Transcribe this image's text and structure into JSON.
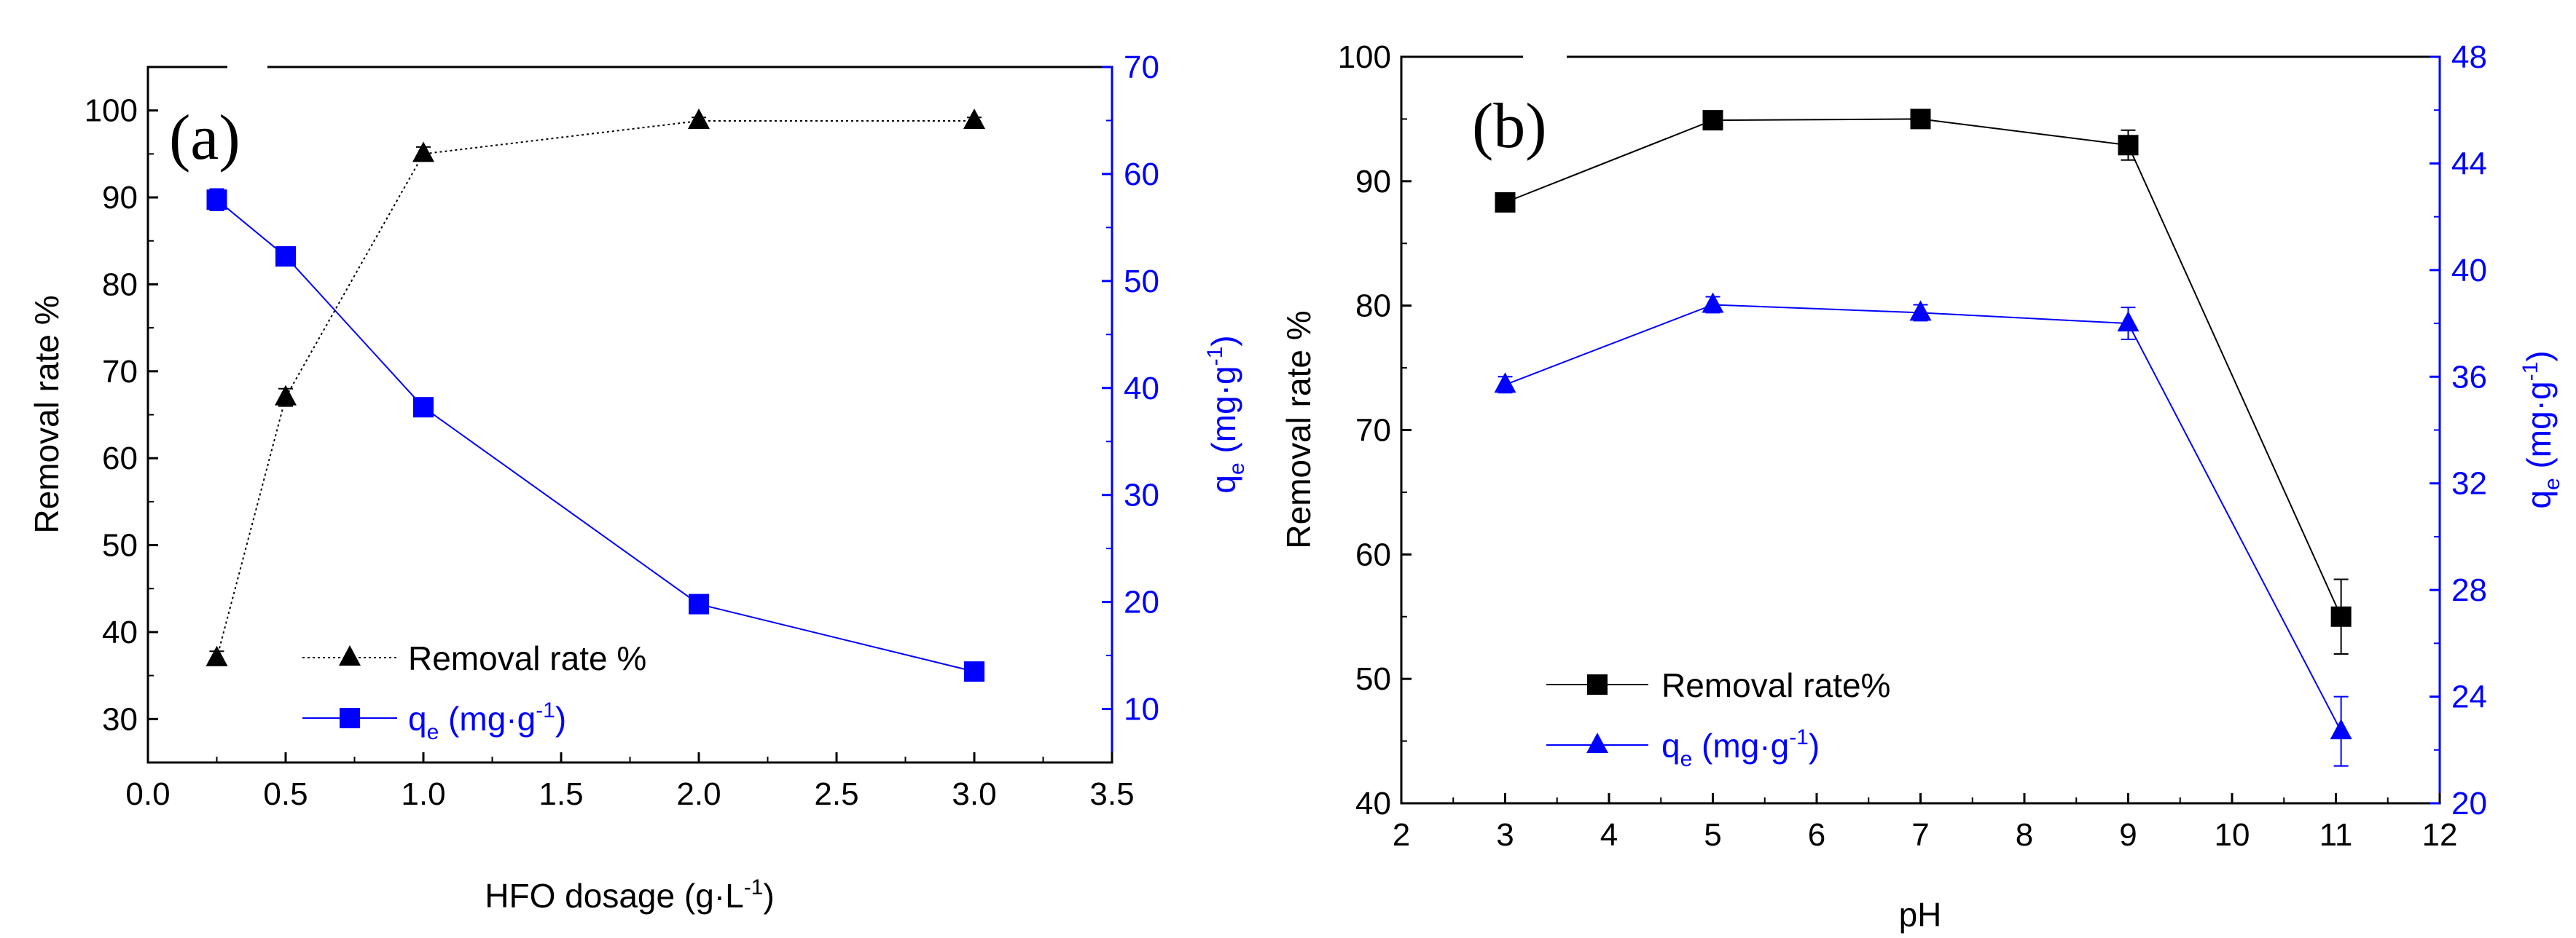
{
  "chart_data": [
    {
      "type": "line",
      "panel_label": "(a)",
      "xlabel_base": "HFO dosage (g·L",
      "xlabel_sup": "-1",
      "xlabel_end": ")",
      "ylabel": "Removal rate %",
      "y2label_base": "q",
      "y2label_sub": "e",
      "y2label_unit_base": " (mg·g",
      "y2label_unit_sup": "-1",
      "y2label_unit_end": ")",
      "xlim": [
        0,
        3.5
      ],
      "ylim": [
        25,
        105
      ],
      "y2lim": [
        5,
        70
      ],
      "x_ticks": [
        "0.0",
        "0.5",
        "1.0",
        "1.5",
        "2.0",
        "2.5",
        "3.0",
        "3.5"
      ],
      "y_ticks": [
        "30",
        "40",
        "50",
        "60",
        "70",
        "80",
        "90",
        "100"
      ],
      "y2_ticks": [
        "10",
        "20",
        "30",
        "40",
        "50",
        "60",
        "70"
      ],
      "series": [
        {
          "name": "Removal rate %",
          "axis": "left",
          "marker": "triangle",
          "color": "#000000",
          "line_style": "dotted",
          "x": [
            0.25,
            0.5,
            1.0,
            2.0,
            3.0
          ],
          "values": [
            37,
            67,
            95,
            98.8,
            98.8
          ],
          "errors": [
            0.8,
            1.0,
            0.8,
            0.4,
            0.4
          ]
        },
        {
          "name_base": "q",
          "name_sub": "e",
          "name_unit_base": " (mg·g",
          "name_unit_sup": "-1",
          "name_unit_end": ")",
          "axis": "right",
          "marker": "square",
          "color": "#0000ff",
          "line_style": "solid",
          "x": [
            0.25,
            0.5,
            1.0,
            2.0,
            3.0
          ],
          "values": [
            57.6,
            52.3,
            38.2,
            19.8,
            13.5
          ],
          "errors": [
            1.0,
            0.3,
            0.3,
            0.3,
            0.3
          ]
        }
      ]
    },
    {
      "type": "line",
      "panel_label": "(b)",
      "xlabel": "pH",
      "ylabel": "Removal rate %",
      "y2label_base": "q",
      "y2label_sub": "e",
      "y2label_unit_base": " (mg·g",
      "y2label_unit_sup": "-1",
      "y2label_unit_end": ")",
      "xlim": [
        2,
        12
      ],
      "ylim": [
        40,
        100
      ],
      "y2lim": [
        20,
        48
      ],
      "x_ticks": [
        "2",
        "3",
        "4",
        "5",
        "6",
        "7",
        "8",
        "9",
        "10",
        "11",
        "12"
      ],
      "y_ticks": [
        "40",
        "50",
        "60",
        "70",
        "80",
        "90",
        "100"
      ],
      "y2_ticks": [
        "20",
        "24",
        "28",
        "32",
        "36",
        "40",
        "44",
        "48"
      ],
      "series": [
        {
          "name": "Removal rate%",
          "axis": "left",
          "marker": "square",
          "color": "#000000",
          "line_style": "solid",
          "x": [
            3,
            5,
            7,
            9,
            11.05
          ],
          "values": [
            88.3,
            94.9,
            95.0,
            92.9,
            55.0
          ],
          "errors": [
            0.3,
            0.3,
            0.3,
            1.2,
            3.0
          ]
        },
        {
          "name_base": "q",
          "name_sub": "e",
          "name_unit_base": " (mg·g",
          "name_unit_sup": "-1",
          "name_unit_end": ")",
          "axis": "right",
          "marker": "triangle",
          "color": "#0000ff",
          "line_style": "solid",
          "x": [
            3,
            5,
            7,
            9,
            11.05
          ],
          "values": [
            35.7,
            38.7,
            38.4,
            38.0,
            22.7
          ],
          "errors": [
            0.3,
            0.3,
            0.3,
            0.6,
            1.3
          ]
        }
      ]
    }
  ]
}
